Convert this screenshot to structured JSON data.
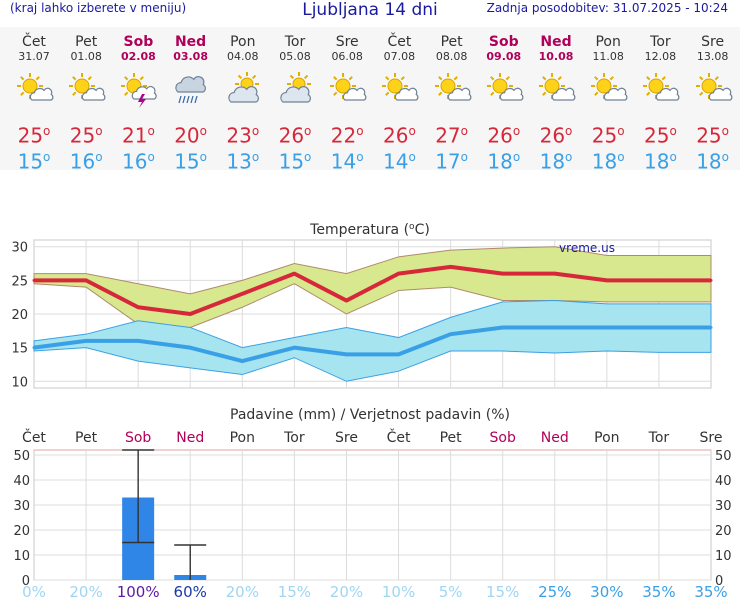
{
  "header": {
    "menu_hint": "(kraj lahko izberete v meniju)",
    "title": "Ljubljana 14 dni",
    "updated": "Zadnja posodobitev: 31.07.2025 - 10:24"
  },
  "degree_symbol": "o",
  "days": [
    {
      "name": "Čet",
      "date": "31.07",
      "weekend": false,
      "icon": "sun-cloud-icon",
      "max": "25",
      "min": "15"
    },
    {
      "name": "Pet",
      "date": "01.08",
      "weekend": false,
      "icon": "sun-cloud-icon",
      "max": "25",
      "min": "16"
    },
    {
      "name": "Sob",
      "date": "02.08",
      "weekend": true,
      "icon": "sun-cloud-storm-icon",
      "max": "21",
      "min": "16"
    },
    {
      "name": "Ned",
      "date": "03.08",
      "weekend": true,
      "icon": "rain-cloud-icon",
      "max": "20",
      "min": "15"
    },
    {
      "name": "Pon",
      "date": "04.08",
      "weekend": false,
      "icon": "sun-cloudy-icon",
      "max": "23",
      "min": "13"
    },
    {
      "name": "Tor",
      "date": "05.08",
      "weekend": false,
      "icon": "sun-cloudy-icon",
      "max": "26",
      "min": "15"
    },
    {
      "name": "Sre",
      "date": "06.08",
      "weekend": false,
      "icon": "sun-cloud-icon",
      "max": "22",
      "min": "14"
    },
    {
      "name": "Čet",
      "date": "07.08",
      "weekend": false,
      "icon": "sun-cloud-icon",
      "max": "26",
      "min": "14"
    },
    {
      "name": "Pet",
      "date": "08.08",
      "weekend": false,
      "icon": "sun-cloud-icon",
      "max": "27",
      "min": "17"
    },
    {
      "name": "Sob",
      "date": "09.08",
      "weekend": true,
      "icon": "sun-cloud-icon",
      "max": "26",
      "min": "18"
    },
    {
      "name": "Ned",
      "date": "10.08",
      "weekend": true,
      "icon": "sun-cloud-icon",
      "max": "26",
      "min": "18"
    },
    {
      "name": "Pon",
      "date": "11.08",
      "weekend": false,
      "icon": "sun-cloud-icon",
      "max": "25",
      "min": "18"
    },
    {
      "name": "Tor",
      "date": "12.08",
      "weekend": false,
      "icon": "sun-cloud-icon",
      "max": "25",
      "min": "18"
    },
    {
      "name": "Sre",
      "date": "13.08",
      "weekend": false,
      "icon": "sun-cloud-icon",
      "max": "25",
      "min": "18"
    }
  ],
  "colors": {
    "max": "#d6283a",
    "min": "#3aa0e6",
    "max_band": "#d7e88f",
    "min_band": "#a6e4f0",
    "bar": "#2f86e6",
    "weekend": "#b0005a",
    "title": "#1a1aa0"
  },
  "chart_data": [
    {
      "type": "line",
      "title": "Temperatura (oC)",
      "title_main": "Temperatura (",
      "title_unit_sup": "o",
      "title_unit": "C)",
      "watermark": "vreme.us",
      "ylim": [
        9,
        31
      ],
      "yticks": [
        "10",
        "15",
        "20",
        "25",
        "30"
      ],
      "x": [
        "31.07",
        "01.08",
        "02.08",
        "03.08",
        "04.08",
        "05.08",
        "06.08",
        "07.08",
        "08.08",
        "09.08",
        "10.08",
        "11.08",
        "12.08",
        "13.08"
      ],
      "series": [
        {
          "values": [
            25,
            25,
            21,
            20,
            23,
            26,
            22,
            26,
            27,
            26,
            26,
            25,
            25,
            25
          ]
        },
        {
          "values": [
            15,
            16,
            16,
            15,
            13,
            15,
            14,
            14,
            17,
            18,
            18,
            18,
            18,
            18
          ]
        }
      ],
      "max_band_upper": [
        26,
        26,
        24.5,
        23,
        25,
        27.5,
        26,
        28.5,
        29.5,
        29.8,
        30,
        28.7,
        28.7,
        28.7
      ],
      "max_band_lower": [
        24.5,
        24,
        18.5,
        18,
        21,
        24.5,
        20,
        23.5,
        24,
        22,
        22,
        21.8,
        21.8,
        21.8
      ],
      "min_band_upper": [
        16,
        17,
        19,
        18,
        15,
        16.5,
        18,
        16.5,
        19.5,
        21.8,
        22,
        21.5,
        21.5,
        21.5
      ],
      "min_band_lower": [
        14.5,
        15,
        13,
        12,
        11,
        13.5,
        10,
        11.5,
        14.5,
        14.5,
        14.2,
        14.5,
        14.3,
        14.3
      ],
      "grid": true
    },
    {
      "type": "bar",
      "title": "Padavine (mm) / Verjetnost padavin (%)",
      "categories": [
        "Čet",
        "Pet",
        "Sob",
        "Ned",
        "Pon",
        "Tor",
        "Sre",
        "Čet",
        "Pet",
        "Sob",
        "Ned",
        "Pon",
        "Tor",
        "Sre"
      ],
      "values": [
        0,
        0,
        33,
        2,
        0,
        0,
        0,
        0,
        0,
        0,
        0,
        0,
        0,
        0
      ],
      "error_high": [
        null,
        null,
        52,
        14,
        null,
        null,
        null,
        null,
        null,
        null,
        null,
        null,
        null,
        null
      ],
      "error_low": [
        null,
        null,
        15,
        0,
        null,
        null,
        null,
        null,
        null,
        null,
        null,
        null,
        null,
        null
      ],
      "probability": [
        "0%",
        "20%",
        "100%",
        "60%",
        "20%",
        "15%",
        "20%",
        "10%",
        "5%",
        "15%",
        "25%",
        "30%",
        "35%",
        "35%"
      ],
      "ylim": [
        0,
        52
      ],
      "yticks": [
        "0",
        "10",
        "20",
        "30",
        "40",
        "50"
      ],
      "grid": true
    }
  ]
}
